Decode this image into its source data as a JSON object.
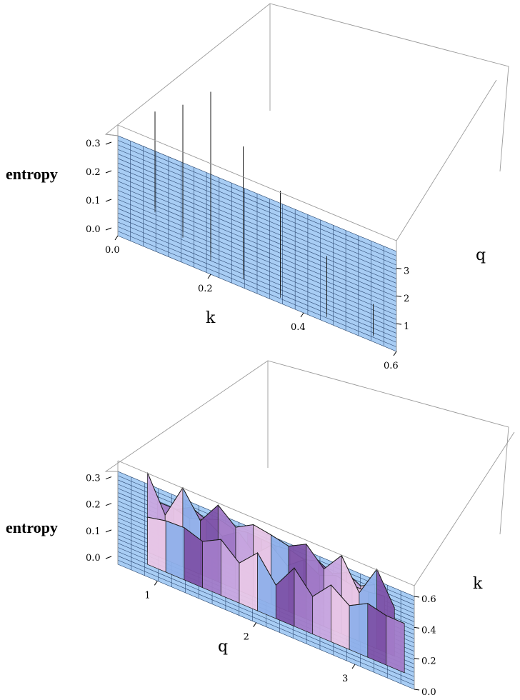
{
  "chart_data": [
    {
      "type": "surface3d",
      "zlabel": "entropy",
      "xlabel": "k",
      "ylabel": "q",
      "x_ticks": [
        "0.0",
        "0.2",
        "0.4",
        "0.6"
      ],
      "y_ticks": [
        "1",
        "2",
        "3"
      ],
      "z_ticks": [
        "0.0",
        "0.1",
        "0.2",
        "0.3"
      ],
      "xlim": [
        0,
        0.6
      ],
      "ylim": [
        0,
        3.6
      ],
      "zlim": [
        0,
        0.35
      ],
      "palette": [
        "#f3a77a",
        "#e58a6b",
        "#b9c6f2",
        "#9fb1ec",
        "#d9a7d4"
      ],
      "ridges": [
        {
          "k": 0.08,
          "q_range": [
            1.4,
            3.6
          ],
          "peak_entropy": 0.14
        },
        {
          "k": 0.14,
          "q_range": [
            0.9,
            3.6
          ],
          "peak_entropy": 0.22
        },
        {
          "k": 0.2,
          "q_range": [
            0.5,
            3.6
          ],
          "peak_entropy": 0.31
        },
        {
          "k": 0.27,
          "q_range": [
            0.3,
            3.0
          ],
          "peak_entropy": 0.24
        },
        {
          "k": 0.35,
          "q_range": [
            0.2,
            2.4
          ],
          "peak_entropy": 0.16
        },
        {
          "k": 0.45,
          "q_range": [
            0.2,
            1.6
          ],
          "peak_entropy": 0.09
        },
        {
          "k": 0.55,
          "q_range": [
            0.2,
            0.9
          ],
          "peak_entropy": 0.05
        }
      ]
    },
    {
      "type": "surface3d",
      "zlabel": "entropy",
      "xlabel": "q",
      "ylabel": "k",
      "x_ticks": [
        "1",
        "2",
        "3"
      ],
      "y_ticks": [
        "0.0",
        "0.2",
        "0.4",
        "0.6"
      ],
      "z_ticks": [
        "0.0",
        "0.1",
        "0.2",
        "0.3"
      ],
      "xlim": [
        0.6,
        3.6
      ],
      "ylim": [
        0,
        0.6
      ],
      "zlim": [
        0,
        0.35
      ],
      "palette": [
        "#7d52a8",
        "#a27bc8",
        "#c8a7df",
        "#e8c6e6",
        "#8fb0ea"
      ],
      "ridges": [
        {
          "k": 0.08,
          "q_range": [
            0.9,
            3.5
          ],
          "peak_entropy": 0.22
        },
        {
          "k": 0.16,
          "q_range": [
            0.9,
            3.4
          ],
          "peak_entropy": 0.3
        },
        {
          "k": 0.3,
          "q_range": [
            1.0,
            3.3
          ],
          "peak_entropy": 0.14
        },
        {
          "k": 0.45,
          "q_range": [
            1.2,
            3.2
          ],
          "peak_entropy": 0.07
        }
      ]
    }
  ]
}
